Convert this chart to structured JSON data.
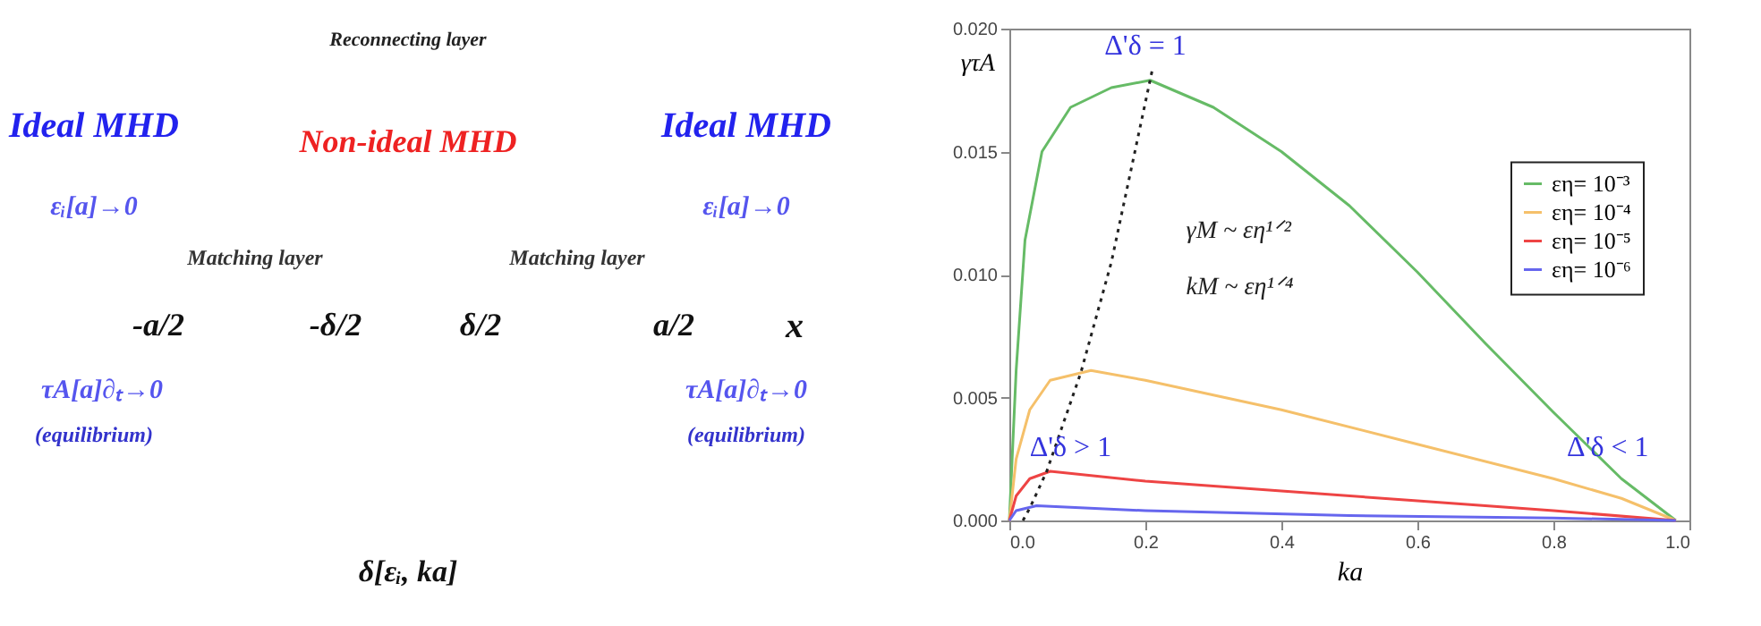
{
  "chart_data": [
    {
      "type": "other",
      "annotations": [
        "Reconnecting layer",
        "Ideal MHD",
        "Non-ideal MHD",
        "Ideal MHD",
        "εᵢ[a]→0",
        "εᵢ[a]→0",
        "Matching layer",
        "Matching layer",
        "-a/2",
        "-δ/2",
        "δ/2",
        "a/2",
        "x",
        "τA[a]∂ₜ→0",
        "τA[a]∂ₜ→0",
        "(equilibrium)",
        "(equilibrium)",
        "δ[εᵢ, ka]"
      ]
    },
    {
      "type": "line",
      "xlabel": "ka",
      "ylabel": "γτA",
      "xlim": [
        0,
        1
      ],
      "ylim": [
        0,
        0.02
      ],
      "xticks": [
        {
          "value": 0,
          "label": "0.0"
        },
        {
          "value": 0.2,
          "label": "0.2"
        },
        {
          "value": 0.4,
          "label": "0.4"
        },
        {
          "value": 0.6,
          "label": "0.6"
        },
        {
          "value": 0.8,
          "label": "0.8"
        },
        {
          "value": 1,
          "label": "1.0"
        }
      ],
      "yticks": [
        {
          "value": 0,
          "label": "0.000"
        },
        {
          "value": 0.005,
          "label": "0.005"
        },
        {
          "value": 0.01,
          "label": "0.010"
        },
        {
          "value": 0.015,
          "label": "0.015"
        },
        {
          "value": 0.02,
          "label": "0.020"
        }
      ],
      "grid": false,
      "legend": "right",
      "marker": "none",
      "series": [
        {
          "name": "εη= 10⁻³",
          "color": "#66bb66",
          "x": [
            0,
            0.01,
            0.023,
            0.048,
            0.09,
            0.15,
            0.207,
            0.3,
            0.4,
            0.5,
            0.6,
            0.7,
            0.8,
            0.9,
            0.98
          ],
          "values": [
            0,
            0.0061,
            0.0114,
            0.015,
            0.0168,
            0.0176,
            0.0179,
            0.0168,
            0.015,
            0.0128,
            0.0101,
            0.0072,
            0.0044,
            0.0017,
            0
          ]
        },
        {
          "name": "εη= 10⁻⁴",
          "color": "#f5c06a",
          "x": [
            0,
            0.01,
            0.03,
            0.06,
            0.12,
            0.2,
            0.4,
            0.6,
            0.8,
            0.9,
            0.98
          ],
          "values": [
            0,
            0.0025,
            0.0045,
            0.0057,
            0.0061,
            0.0057,
            0.0045,
            0.0031,
            0.0017,
            0.0009,
            0
          ]
        },
        {
          "name": "εη= 10⁻⁵",
          "color": "#ee4444",
          "x": [
            0,
            0.01,
            0.03,
            0.06,
            0.2,
            0.4,
            0.6,
            0.8,
            0.98
          ],
          "values": [
            0,
            0.001,
            0.0017,
            0.002,
            0.0016,
            0.0012,
            0.0008,
            0.0004,
            0
          ]
        },
        {
          "name": "εη= 10⁻⁶",
          "color": "#6666ee",
          "x": [
            0,
            0.01,
            0.04,
            0.2,
            0.5,
            0.8,
            0.98
          ],
          "values": [
            0,
            0.0004,
            0.0006,
            0.0004,
            0.0002,
            0.0001,
            0
          ]
        },
        {
          "type": "line",
          "line_style": "dotted",
          "color": "#222222",
          "x": [
            0.02,
            0.03,
            0.055,
            0.105,
            0.15,
            0.21
          ],
          "values": [
            0,
            0.0005,
            0.002,
            0.006,
            0.0105,
            0.0183
          ]
        }
      ],
      "annotations": [
        "Δ'δ = 1",
        "Δ'δ > 1",
        "Δ'δ < 1",
        "γM ~ εη¹ᐟ²",
        "kM ~ εη¹ᐟ⁴"
      ]
    }
  ]
}
